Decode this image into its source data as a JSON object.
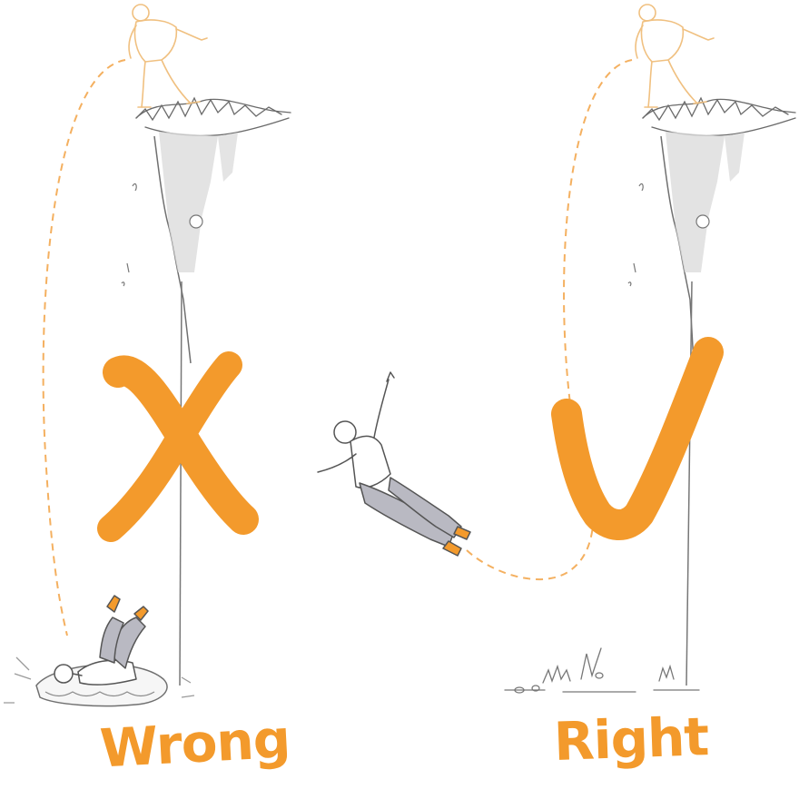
{
  "colors": {
    "accent": "#f39a2c",
    "ink": "#5a5a5a",
    "skin_sketch": "#f0c080",
    "rock": "#d9d9d9",
    "jeans": "#b9b9c2"
  },
  "panels": {
    "wrong": {
      "caption": "Wrong",
      "mark_icon": "x-mark-icon"
    },
    "right": {
      "caption": "Right",
      "mark_icon": "check-mark-icon"
    }
  }
}
